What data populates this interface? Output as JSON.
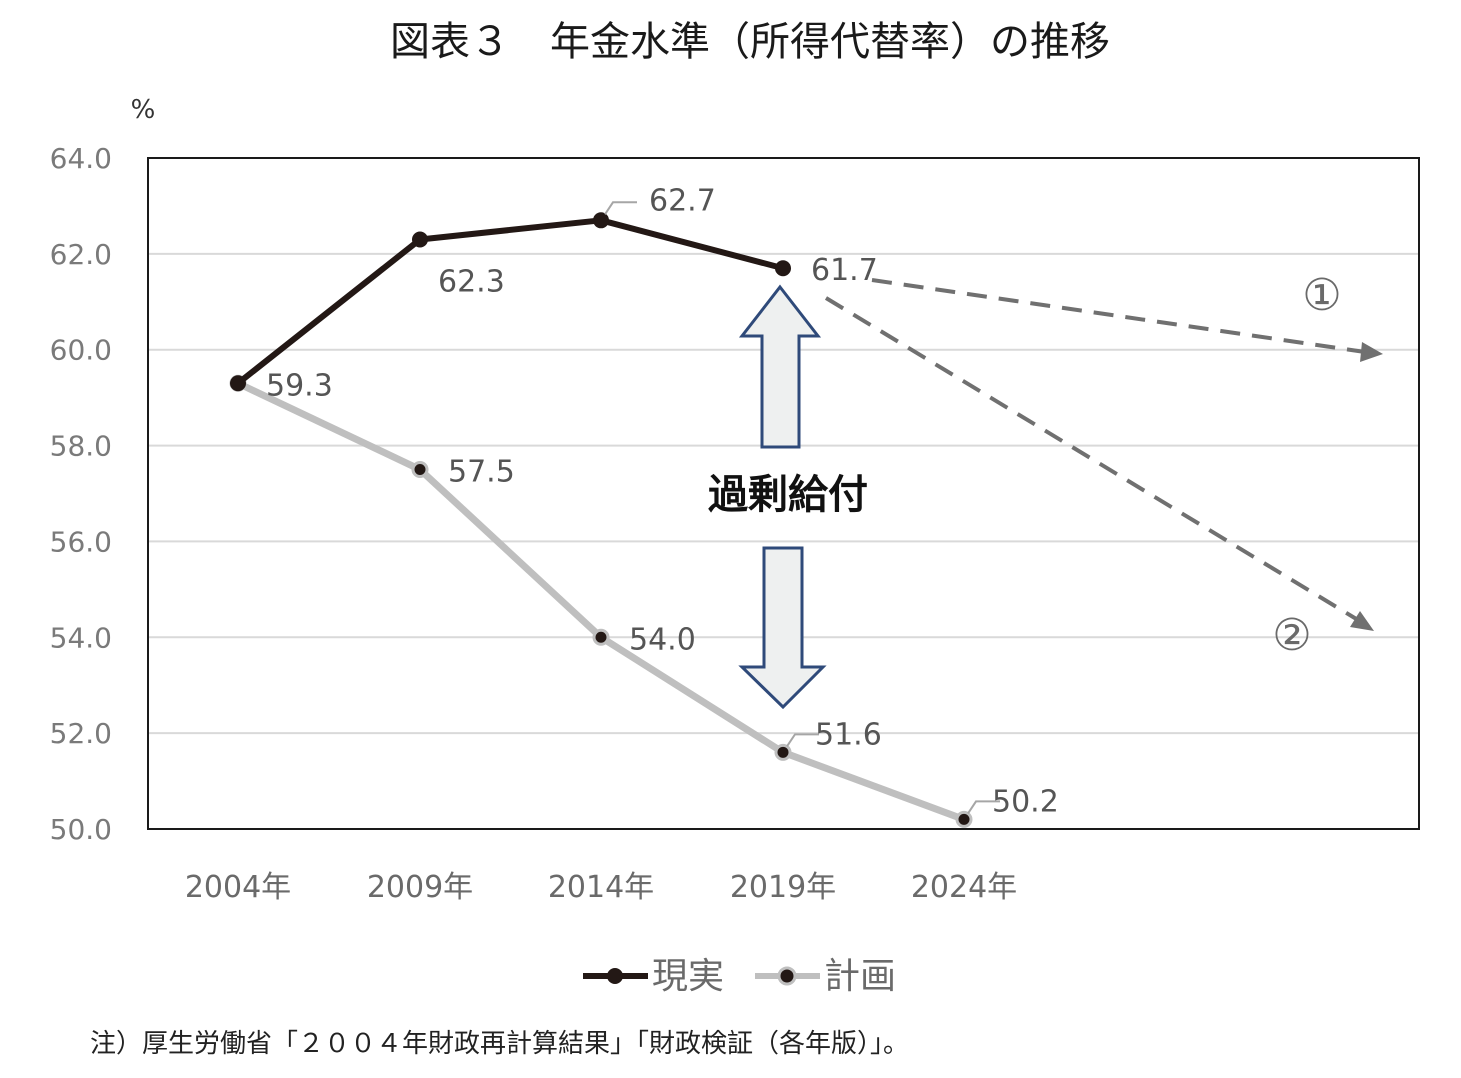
{
  "chart_data": {
    "type": "line",
    "title": "図表３　年金水準（所得代替率）の推移",
    "ylabel": "%",
    "xlabel": "",
    "categories": [
      "2004年",
      "2009年",
      "2014年",
      "2019年",
      "2024年"
    ],
    "ylim": [
      50.0,
      64.0
    ],
    "yticks": [
      "64.0",
      "62.0",
      "60.0",
      "58.0",
      "56.0",
      "54.0",
      "52.0",
      "50.0"
    ],
    "grid": true,
    "legend_position": "bottom",
    "series": [
      {
        "name": "現実",
        "values": [
          59.3,
          62.3,
          62.7,
          61.7,
          null
        ],
        "labels": [
          "",
          "62.3",
          "62.7",
          "61.7",
          ""
        ],
        "color": "#231815"
      },
      {
        "name": "計画",
        "values": [
          59.3,
          57.5,
          54.0,
          51.6,
          50.2
        ],
        "labels": [
          "59.3",
          "57.5",
          "54.0",
          "51.6",
          "50.2"
        ],
        "color": "#bfbfbf"
      }
    ],
    "annotations": {
      "gap_label": "過剰給付",
      "scenario_1": "①",
      "scenario_2": "②",
      "arrow_color": "#2f4a7a",
      "dashed_color": "#707070"
    },
    "note": "注）厚生労働省「２００４年財政再計算結果」「財政検証（各年版）」。"
  }
}
